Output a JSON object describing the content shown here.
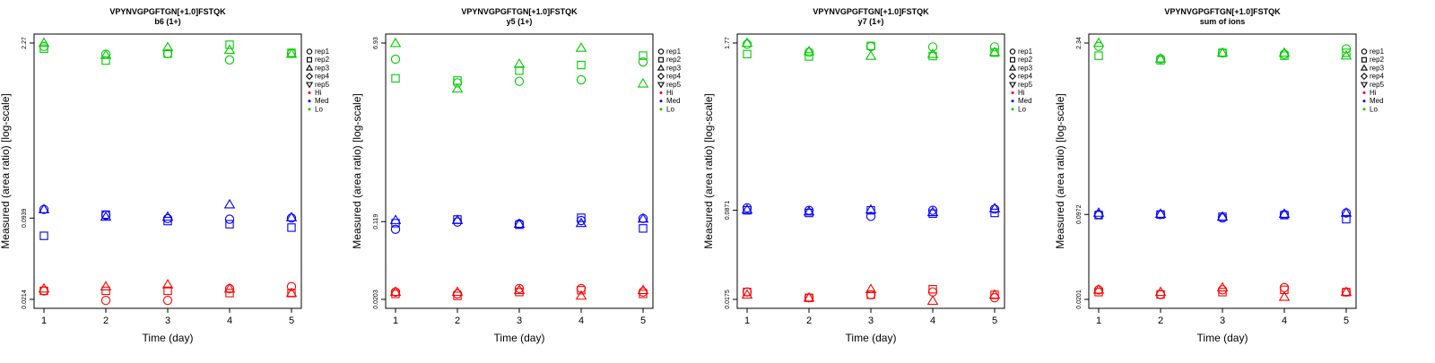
{
  "panels": [
    {
      "title": "VPYNVGPGFTGN[+1.0]FSTQK",
      "subtitle": "b6 (1+)",
      "xlabel": "Time (day)",
      "ylabel": "Measured (area ratio) [log-scale]",
      "ytick_labels": [
        "0.0214",
        "0.0939",
        "2.27"
      ]
    },
    {
      "title": "VPYNVGPGFTGN[+1.0]FSTQK",
      "subtitle": "y5 (1+)",
      "xlabel": "Time (day)",
      "ylabel": "Measured (area ratio) [log-scale]",
      "ytick_labels": [
        "0.0203",
        "0.119",
        "6.93"
      ]
    },
    {
      "title": "VPYNVGPGFTGN[+1.0]FSTQK",
      "subtitle": "y7 (1+)",
      "xlabel": "Time (day)",
      "ylabel": "Measured (area ratio) [log-scale]",
      "ytick_labels": [
        "0.0175",
        "0.0871",
        "1.77"
      ]
    },
    {
      "title": "VPYNVGPGFTGN[+1.0]FSTQK",
      "subtitle": "sum of ions",
      "xlabel": "Time (day)",
      "ylabel": "Measured (area ratio) [log-scale]",
      "ytick_labels": [
        "0.0201",
        "0.0972",
        "2.34"
      ]
    }
  ],
  "xtick_labels": [
    "1",
    "2",
    "3",
    "4",
    "5"
  ],
  "legend": {
    "shapes": [
      {
        "label": "rep1",
        "symbol": "circle"
      },
      {
        "label": "rep2",
        "symbol": "square"
      },
      {
        "label": "rep3",
        "symbol": "triangle-up"
      },
      {
        "label": "rep4",
        "symbol": "diamond"
      },
      {
        "label": "rep5",
        "symbol": "triangle-down"
      }
    ],
    "colors": [
      {
        "label": "Hi",
        "color": "#ff0000"
      },
      {
        "label": "Med",
        "color": "#0000ff"
      },
      {
        "label": "Lo",
        "color": "#00cc00"
      }
    ]
  },
  "chart_data": [
    {
      "type": "scatter",
      "title": "VPYNVGPGFTGN[+1.0]FSTQK",
      "subtitle": "b6 (1+)",
      "xlabel": "Time (day)",
      "ylabel": "Measured (area ratio) [log-scale]",
      "y_scale": "log",
      "x": [
        1,
        2,
        3,
        4,
        5
      ],
      "ylim": [
        0.0214,
        2.27
      ],
      "yticks": [
        0.0214,
        0.0939,
        2.27
      ],
      "legend_position": "right",
      "series": [
        {
          "name": "Lo",
          "rep": "rep1",
          "color": "#00cc00",
          "values": [
            2.13,
            1.85,
            1.87,
            1.67,
            1.88
          ]
        },
        {
          "name": "Lo",
          "rep": "rep2",
          "color": "#00cc00",
          "values": [
            2.05,
            1.65,
            1.87,
            2.2,
            1.9
          ]
        },
        {
          "name": "Lo",
          "rep": "rep3",
          "color": "#00cc00",
          "values": [
            2.27,
            1.82,
            2.1,
            2.0,
            1.86
          ]
        },
        {
          "name": "Med",
          "rep": "rep1",
          "color": "#0000ff",
          "values": [
            0.11,
            0.099,
            0.093,
            0.092,
            0.094
          ]
        },
        {
          "name": "Med",
          "rep": "rep2",
          "color": "#0000ff",
          "values": [
            0.068,
            0.1,
            0.089,
            0.084,
            0.079
          ]
        },
        {
          "name": "Med",
          "rep": "rep3",
          "color": "#0000ff",
          "values": [
            0.11,
            0.096,
            0.096,
            0.12,
            0.095
          ]
        },
        {
          "name": "Hi",
          "rep": "rep1",
          "color": "#ff0000",
          "values": [
            0.025,
            0.021,
            0.021,
            0.026,
            0.027
          ]
        },
        {
          "name": "Hi",
          "rep": "rep2",
          "color": "#ff0000",
          "values": [
            0.025,
            0.025,
            0.025,
            0.024,
            0.024
          ]
        },
        {
          "name": "Hi",
          "rep": "rep3",
          "color": "#ff0000",
          "values": [
            0.026,
            0.027,
            0.028,
            0.026,
            0.024
          ]
        }
      ]
    },
    {
      "type": "scatter",
      "title": "VPYNVGPGFTGN[+1.0]FSTQK",
      "subtitle": "y5 (1+)",
      "xlabel": "Time (day)",
      "ylabel": "Measured (area ratio) [log-scale]",
      "y_scale": "log",
      "x": [
        1,
        2,
        3,
        4,
        5
      ],
      "ylim": [
        0.0203,
        6.93
      ],
      "yticks": [
        0.0203,
        0.119,
        6.93
      ],
      "legend_position": "right",
      "series": [
        {
          "name": "Lo",
          "rep": "rep1",
          "color": "#00cc00",
          "values": [
            4.8,
            2.8,
            2.9,
            3.0,
            4.5
          ]
        },
        {
          "name": "Lo",
          "rep": "rep2",
          "color": "#00cc00",
          "values": [
            3.1,
            2.95,
            3.7,
            4.2,
            5.2
          ]
        },
        {
          "name": "Lo",
          "rep": "rep3",
          "color": "#00cc00",
          "values": [
            6.9,
            2.45,
            4.3,
            6.2,
            2.75
          ]
        },
        {
          "name": "Med",
          "rep": "rep1",
          "color": "#0000ff",
          "values": [
            0.1,
            0.118,
            0.113,
            0.122,
            0.128
          ]
        },
        {
          "name": "Med",
          "rep": "rep2",
          "color": "#0000ff",
          "values": [
            0.115,
            0.125,
            0.111,
            0.13,
            0.102
          ]
        },
        {
          "name": "Med",
          "rep": "rep3",
          "color": "#0000ff",
          "values": [
            0.123,
            0.123,
            0.113,
            0.115,
            0.127
          ]
        },
        {
          "name": "Hi",
          "rep": "rep1",
          "color": "#ff0000",
          "values": [
            0.024,
            0.023,
            0.026,
            0.026,
            0.024
          ]
        },
        {
          "name": "Hi",
          "rep": "rep2",
          "color": "#ff0000",
          "values": [
            0.023,
            0.022,
            0.024,
            0.025,
            0.023
          ]
        },
        {
          "name": "Hi",
          "rep": "rep3",
          "color": "#ff0000",
          "values": [
            0.024,
            0.024,
            0.025,
            0.022,
            0.025
          ]
        }
      ]
    },
    {
      "type": "scatter",
      "title": "VPYNVGPGFTGN[+1.0]FSTQK",
      "subtitle": "y7 (1+)",
      "xlabel": "Time (day)",
      "ylabel": "Measured (area ratio) [log-scale]",
      "y_scale": "log",
      "x": [
        1,
        2,
        3,
        4,
        5
      ],
      "ylim": [
        0.0175,
        1.77
      ],
      "yticks": [
        0.0175,
        0.0871,
        1.77
      ],
      "legend_position": "right",
      "series": [
        {
          "name": "Lo",
          "rep": "rep1",
          "color": "#00cc00",
          "values": [
            1.73,
            1.5,
            1.66,
            1.65,
            1.65
          ]
        },
        {
          "name": "Lo",
          "rep": "rep2",
          "color": "#00cc00",
          "values": [
            1.45,
            1.39,
            1.68,
            1.4,
            1.49
          ]
        },
        {
          "name": "Lo",
          "rep": "rep3",
          "color": "#00cc00",
          "values": [
            1.77,
            1.52,
            1.4,
            1.45,
            1.5
          ]
        },
        {
          "name": "Med",
          "rep": "rep1",
          "color": "#0000ff",
          "values": [
            0.091,
            0.087,
            0.078,
            0.087,
            0.089
          ]
        },
        {
          "name": "Med",
          "rep": "rep2",
          "color": "#0000ff",
          "values": [
            0.087,
            0.083,
            0.087,
            0.082,
            0.083
          ]
        },
        {
          "name": "Med",
          "rep": "rep3",
          "color": "#0000ff",
          "values": [
            0.088,
            0.085,
            0.088,
            0.084,
            0.09
          ]
        },
        {
          "name": "Hi",
          "rep": "rep1",
          "color": "#ff0000",
          "values": [
            0.02,
            0.018,
            0.019,
            0.02,
            0.018
          ]
        },
        {
          "name": "Hi",
          "rep": "rep2",
          "color": "#ff0000",
          "values": [
            0.02,
            0.018,
            0.019,
            0.021,
            0.019
          ]
        },
        {
          "name": "Hi",
          "rep": "rep3",
          "color": "#ff0000",
          "values": [
            0.019,
            0.018,
            0.021,
            0.017,
            0.019
          ]
        }
      ]
    },
    {
      "type": "scatter",
      "title": "VPYNVGPGFTGN[+1.0]FSTQK",
      "subtitle": "sum of ions",
      "xlabel": "Time (day)",
      "ylabel": "Measured (area ratio) [log-scale]",
      "y_scale": "log",
      "x": [
        1,
        2,
        3,
        4,
        5
      ],
      "ylim": [
        0.0201,
        2.34
      ],
      "yticks": [
        0.0201,
        0.0972,
        2.34
      ],
      "legend_position": "right",
      "series": [
        {
          "name": "Lo",
          "rep": "rep1",
          "color": "#00cc00",
          "values": [
            2.2,
            1.75,
            1.95,
            1.9,
            2.1
          ]
        },
        {
          "name": "Lo",
          "rep": "rep2",
          "color": "#00cc00",
          "values": [
            1.85,
            1.7,
            1.95,
            1.85,
            1.95
          ]
        },
        {
          "name": "Lo",
          "rep": "rep3",
          "color": "#00cc00",
          "values": [
            2.34,
            1.75,
            1.95,
            1.95,
            1.85
          ]
        },
        {
          "name": "Med",
          "rep": "rep1",
          "color": "#0000ff",
          "values": [
            0.097,
            0.097,
            0.091,
            0.097,
            0.1
          ]
        },
        {
          "name": "Med",
          "rep": "rep2",
          "color": "#0000ff",
          "values": [
            0.096,
            0.097,
            0.093,
            0.096,
            0.089
          ]
        },
        {
          "name": "Med",
          "rep": "rep3",
          "color": "#0000ff",
          "values": [
            0.1,
            0.098,
            0.093,
            0.098,
            0.1
          ]
        },
        {
          "name": "Hi",
          "rep": "rep1",
          "color": "#ff0000",
          "values": [
            0.024,
            0.022,
            0.024,
            0.025,
            0.023
          ]
        },
        {
          "name": "Hi",
          "rep": "rep2",
          "color": "#ff0000",
          "values": [
            0.023,
            0.022,
            0.023,
            0.024,
            0.023
          ]
        },
        {
          "name": "Hi",
          "rep": "rep3",
          "color": "#ff0000",
          "values": [
            0.024,
            0.023,
            0.025,
            0.021,
            0.023
          ]
        }
      ]
    }
  ]
}
